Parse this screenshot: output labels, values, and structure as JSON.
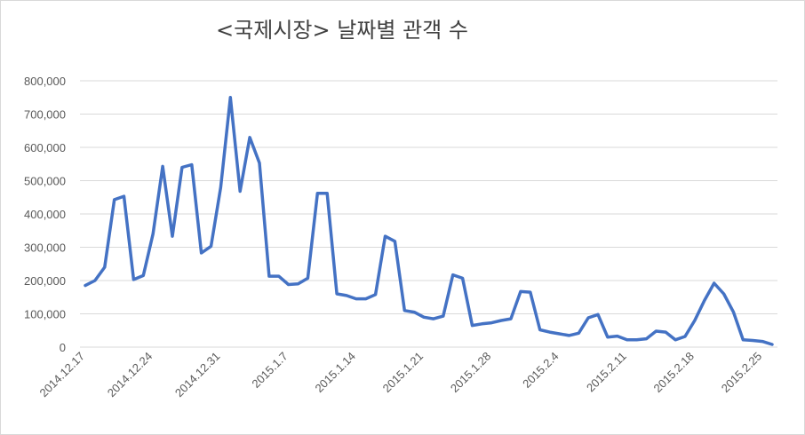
{
  "chart_data": {
    "type": "line",
    "title": "<국제시장> 날짜별 관객 수",
    "xlabel": "",
    "ylabel": "",
    "ylim": [
      0,
      800000
    ],
    "y_ticks": [
      "0",
      "100,000",
      "200,000",
      "300,000",
      "400,000",
      "500,000",
      "600,000",
      "700,000",
      "800,000"
    ],
    "x_tick_labels": [
      "2014.12.17",
      "2014.12.24",
      "2014.12.31",
      "2015.1.7",
      "2015.1.14",
      "2015.1.21",
      "2015.1.28",
      "2015.2.4",
      "2015.2.11",
      "2015.2.18",
      "2015.2.25"
    ],
    "x_tick_every": 7,
    "grid": true,
    "legend": "none",
    "series_color": "#4472c4",
    "series": [
      {
        "values": [
          185000,
          200000,
          240000,
          443000,
          453000,
          203000,
          215000,
          340000,
          543000,
          333000,
          540000,
          548000,
          283000,
          303000,
          480000,
          750000,
          468000,
          630000,
          553000,
          213000,
          213000,
          188000,
          190000,
          207000,
          462000,
          462000,
          160000,
          155000,
          145000,
          145000,
          158000,
          333000,
          318000,
          110000,
          105000,
          90000,
          85000,
          93000,
          217000,
          207000,
          65000,
          70000,
          73000,
          80000,
          85000,
          167000,
          165000,
          52000,
          45000,
          40000,
          35000,
          42000,
          88000,
          98000,
          30000,
          33000,
          22000,
          22000,
          25000,
          48000,
          45000,
          22000,
          32000,
          80000,
          140000,
          192000,
          160000,
          105000,
          22000,
          20000,
          17000,
          8000
        ]
      }
    ]
  }
}
